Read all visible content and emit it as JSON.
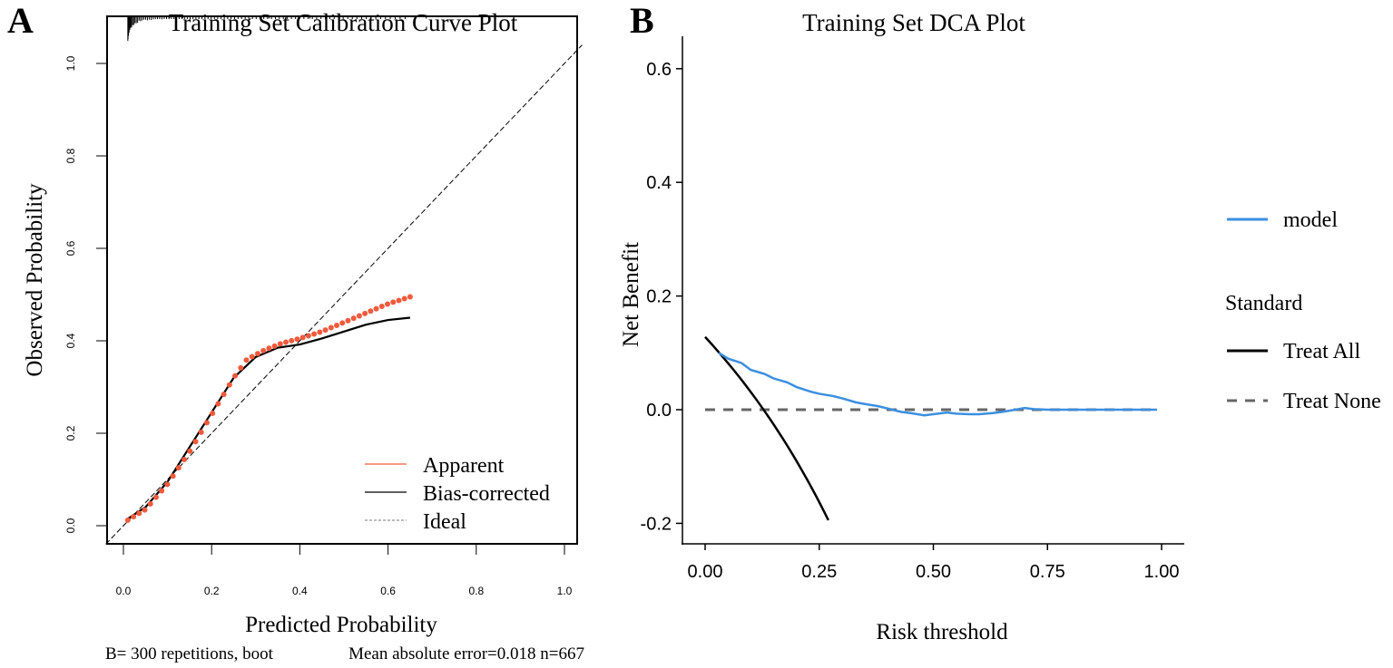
{
  "chart_data": [
    {
      "panel_label": "A",
      "type": "line",
      "title": "Training Set Calibration Curve Plot",
      "xlabel": "Predicted Probability",
      "ylabel": "Observed Probability",
      "xlim": [
        0,
        1
      ],
      "ylim": [
        0,
        1
      ],
      "xticks": [
        "0.0",
        "0.2",
        "0.4",
        "0.6",
        "0.8",
        "1.0"
      ],
      "yticks": [
        "0.0",
        "0.2",
        "0.4",
        "0.6",
        "0.8",
        "1.0"
      ],
      "legend_position": "bottom-right",
      "footnote_left": "B= 300 repetitions, boot",
      "footnote_right": "Mean absolute error=0.018 n=667",
      "series": [
        {
          "name": "Apparent",
          "color": "#f05a3c",
          "style": "dotted-points",
          "x": [
            0.01,
            0.05,
            0.1,
            0.15,
            0.2,
            0.25,
            0.28,
            0.32,
            0.36,
            0.4,
            0.45,
            0.5,
            0.55,
            0.6,
            0.65
          ],
          "y": [
            0.012,
            0.035,
            0.09,
            0.16,
            0.24,
            0.32,
            0.36,
            0.38,
            0.395,
            0.405,
            0.42,
            0.44,
            0.46,
            0.48,
            0.495
          ]
        },
        {
          "name": "Bias-corrected",
          "color": "#000000",
          "style": "solid",
          "x": [
            0.01,
            0.05,
            0.1,
            0.15,
            0.2,
            0.25,
            0.3,
            0.35,
            0.4,
            0.45,
            0.5,
            0.55,
            0.6,
            0.65
          ],
          "y": [
            0.015,
            0.04,
            0.095,
            0.17,
            0.245,
            0.32,
            0.365,
            0.385,
            0.392,
            0.405,
            0.42,
            0.435,
            0.445,
            0.45
          ]
        },
        {
          "name": "Ideal",
          "color": "#000000",
          "style": "dashed",
          "x": [
            -0.04,
            1.04
          ],
          "y": [
            -0.04,
            1.04
          ]
        }
      ]
    },
    {
      "panel_label": "B",
      "type": "line",
      "title": "Training Set DCA Plot",
      "xlabel": "Risk threshold",
      "ylabel": "Net Benefit",
      "xlim": [
        0,
        1
      ],
      "ylim": [
        -0.2,
        0.6
      ],
      "xticks": [
        "0.00",
        "0.25",
        "0.50",
        "0.75",
        "1.00"
      ],
      "yticks": [
        "-0.2",
        "0.0",
        "0.2",
        "0.4",
        "0.6"
      ],
      "legend_position": "right",
      "legend_title": "Standard",
      "series": [
        {
          "name": "model",
          "color": "#3b8fe0",
          "x": [
            0.03,
            0.05,
            0.08,
            0.1,
            0.13,
            0.15,
            0.18,
            0.2,
            0.23,
            0.25,
            0.28,
            0.3,
            0.33,
            0.35,
            0.38,
            0.4,
            0.43,
            0.45,
            0.48,
            0.5,
            0.53,
            0.55,
            0.58,
            0.6,
            0.63,
            0.65,
            0.68,
            0.7,
            0.72,
            0.75,
            0.99
          ],
          "y": [
            0.1,
            0.09,
            0.082,
            0.07,
            0.063,
            0.055,
            0.048,
            0.04,
            0.032,
            0.028,
            0.024,
            0.02,
            0.013,
            0.01,
            0.006,
            0.002,
            -0.004,
            -0.006,
            -0.01,
            -0.008,
            -0.005,
            -0.007,
            -0.008,
            -0.008,
            -0.006,
            -0.004,
            0,
            0.003,
            0.001,
            0,
            0
          ]
        },
        {
          "name": "Treat All",
          "color": "#000000",
          "prevalence": 0.128,
          "x_max": 0.27
        },
        {
          "name": "Treat None",
          "color": "#666666",
          "x": [
            0,
            0.99
          ],
          "y": [
            0,
            0
          ]
        }
      ]
    }
  ]
}
